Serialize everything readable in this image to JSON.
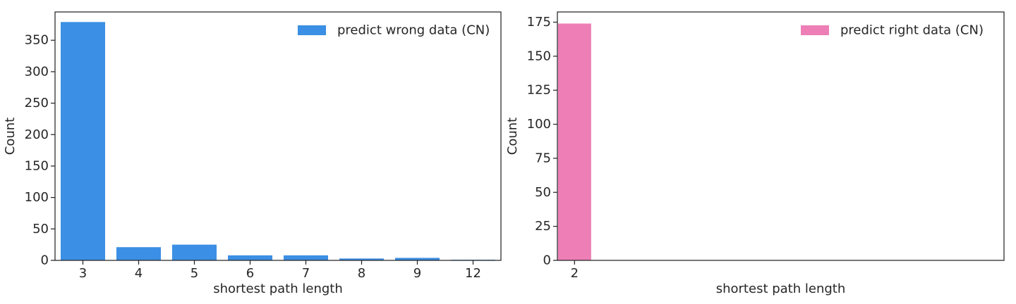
{
  "chart_data": [
    {
      "type": "bar",
      "categories": [
        "3",
        "4",
        "5",
        "6",
        "7",
        "8",
        "9",
        "12"
      ],
      "values": [
        379,
        21,
        25,
        8,
        8,
        3,
        4,
        1
      ],
      "xlabel": "shortest path length",
      "ylabel": "Count",
      "ylim": [
        0,
        395
      ],
      "yticks": [
        0,
        50,
        100,
        150,
        200,
        250,
        300,
        350
      ],
      "legend": {
        "label": "predict wrong data (CN)",
        "position": "top-right"
      },
      "color": "#3b8fe4",
      "grid": false
    },
    {
      "type": "bar",
      "categories": [
        "2"
      ],
      "values": [
        174
      ],
      "xlabel": "shortest path length",
      "ylabel": "Count",
      "ylim": [
        0,
        182.5
      ],
      "yticks": [
        0,
        25,
        50,
        75,
        100,
        125,
        150,
        175
      ],
      "legend": {
        "label": "predict right data (CN)",
        "position": "top-right"
      },
      "color": "#ed7fb6",
      "grid": false
    }
  ]
}
